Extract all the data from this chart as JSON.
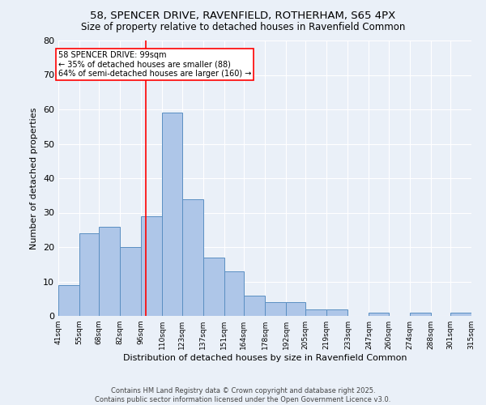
{
  "title_line1": "58, SPENCER DRIVE, RAVENFIELD, ROTHERHAM, S65 4PX",
  "title_line2": "Size of property relative to detached houses in Ravenfield Common",
  "xlabel": "Distribution of detached houses by size in Ravenfield Common",
  "ylabel": "Number of detached properties",
  "bin_edges": [
    41,
    55,
    68,
    82,
    96,
    110,
    123,
    137,
    151,
    164,
    178,
    192,
    205,
    219,
    233,
    247,
    260,
    274,
    288,
    301,
    315
  ],
  "bar_heights": [
    9,
    24,
    26,
    20,
    29,
    59,
    34,
    17,
    13,
    6,
    4,
    4,
    2,
    2,
    0,
    1,
    0,
    1,
    0,
    1
  ],
  "bar_color": "#aec6e8",
  "bar_edge_color": "#5a8fc2",
  "vline_x": 99,
  "vline_color": "red",
  "annotation_text": "58 SPENCER DRIVE: 99sqm\n← 35% of detached houses are smaller (88)\n64% of semi-detached houses are larger (160) →",
  "annotation_box_color": "white",
  "annotation_box_edge_color": "red",
  "ylim": [
    0,
    80
  ],
  "yticks": [
    0,
    10,
    20,
    30,
    40,
    50,
    60,
    70,
    80
  ],
  "bg_color": "#eaf0f8",
  "footer_text": "Contains HM Land Registry data © Crown copyright and database right 2025.\nContains public sector information licensed under the Open Government Licence v3.0.",
  "tick_labels": [
    "41sqm",
    "55sqm",
    "68sqm",
    "82sqm",
    "96sqm",
    "110sqm",
    "123sqm",
    "137sqm",
    "151sqm",
    "164sqm",
    "178sqm",
    "192sqm",
    "205sqm",
    "219sqm",
    "233sqm",
    "247sqm",
    "260sqm",
    "274sqm",
    "288sqm",
    "301sqm",
    "315sqm"
  ]
}
